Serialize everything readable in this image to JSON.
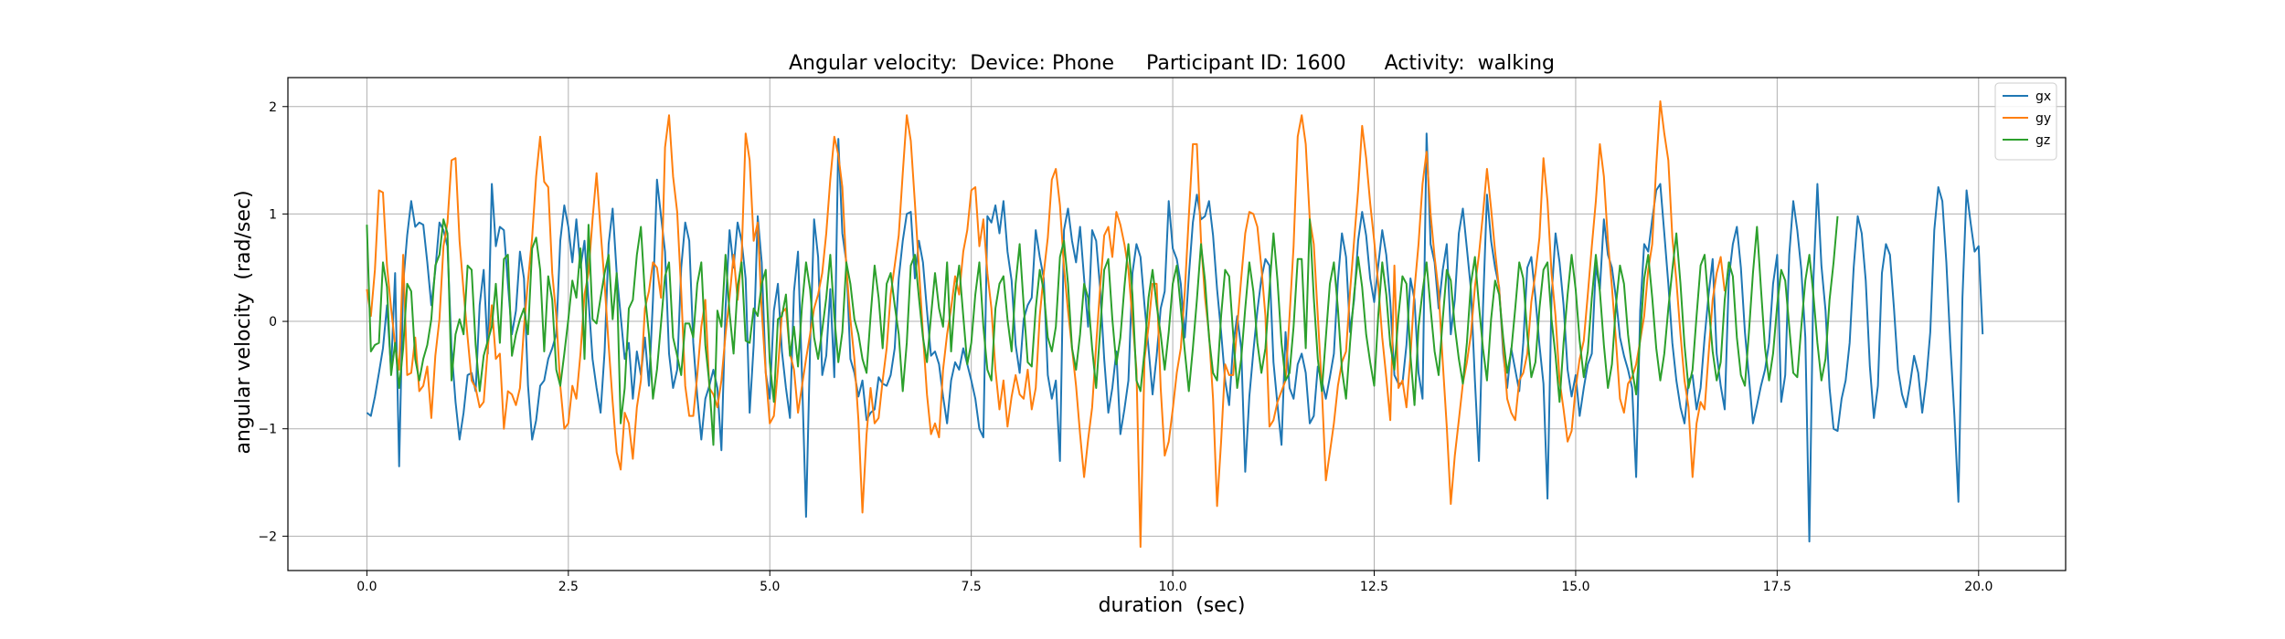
{
  "chart_data": {
    "type": "line",
    "title": "Angular velocity:  Device: Phone     Participant ID: 1600      Activity:  walking",
    "xlabel": "duration  (sec)",
    "ylabel": "angular velocity  (rad/sec)",
    "xlim": [
      -0.98,
      21.08
    ],
    "ylim": [
      -2.32,
      2.27
    ],
    "xticks": [
      0.0,
      2.5,
      5.0,
      7.5,
      10.0,
      12.5,
      15.0,
      17.5,
      20.0
    ],
    "xtick_labels": [
      "0.0",
      "2.5",
      "5.0",
      "7.5",
      "10.0",
      "12.5",
      "15.0",
      "17.5",
      "20.0"
    ],
    "yticks": [
      -2,
      -1,
      0,
      1,
      2
    ],
    "ytick_labels": [
      "−2",
      "−1",
      "0",
      "1",
      "2"
    ],
    "grid": true,
    "legend_position": "top-right",
    "sample_interval": 0.05,
    "x_start": 0.0,
    "series": [
      {
        "name": "gx",
        "color": "#1f77b4",
        "values": [
          -0.85,
          -0.88,
          -0.7,
          -0.48,
          -0.25,
          0.15,
          -0.45,
          0.45,
          -1.35,
          0.35,
          0.8,
          1.12,
          0.88,
          0.92,
          0.9,
          0.55,
          0.15,
          0.48,
          0.92,
          0.85,
          0.7,
          -0.25,
          -0.75,
          -1.1,
          -0.85,
          -0.5,
          -0.48,
          -0.65,
          0.15,
          0.48,
          -0.3,
          1.28,
          0.7,
          0.88,
          0.85,
          0.35,
          -0.12,
          0.1,
          0.65,
          0.4,
          -0.6,
          -1.1,
          -0.92,
          -0.6,
          -0.55,
          -0.35,
          -0.25,
          -0.12,
          0.75,
          1.08,
          0.88,
          0.55,
          0.95,
          0.5,
          0.75,
          0.2,
          -0.35,
          -0.62,
          -0.85,
          -0.28,
          0.72,
          1.05,
          0.45,
          0.05,
          -0.35,
          -0.2,
          -0.72,
          -0.28,
          -0.5,
          -0.15,
          -0.6,
          0.2,
          1.32,
          0.98,
          0.65,
          -0.3,
          -0.62,
          -0.45,
          0.5,
          0.92,
          0.75,
          -0.2,
          -0.7,
          -1.1,
          -0.72,
          -0.6,
          -0.45,
          -0.62,
          -1.2,
          0.12,
          0.85,
          0.5,
          0.92,
          0.75,
          0.4,
          -0.85,
          -0.22,
          0.98,
          0.55,
          -0.48,
          -0.72,
          0.1,
          0.35,
          -0.28,
          -0.62,
          -0.9,
          0.28,
          0.65,
          -0.52,
          -1.82,
          -0.25,
          0.95,
          0.6,
          -0.5,
          -0.32,
          0.3,
          -0.52,
          1.7,
          0.82,
          0.55,
          -0.35,
          -0.48,
          -0.7,
          -0.55,
          -0.92,
          -0.85,
          -0.82,
          -0.52,
          -0.58,
          -0.6,
          -0.5,
          -0.25,
          0.4,
          0.75,
          1.0,
          1.02,
          0.4,
          0.75,
          0.55,
          0.1,
          -0.32,
          -0.28,
          -0.4,
          -0.7,
          -0.95,
          -0.55,
          -0.38,
          -0.45,
          -0.25,
          -0.4,
          -0.55,
          -0.72,
          -1.0,
          -1.08,
          0.98,
          0.92,
          1.08,
          0.82,
          1.12,
          0.65,
          0.38,
          -0.22,
          -0.48,
          0.02,
          0.15,
          0.22,
          0.85,
          0.6,
          0.4,
          -0.5,
          -0.72,
          -0.55,
          -1.3,
          0.85,
          1.05,
          0.75,
          0.55,
          0.88,
          0.4,
          -0.05,
          0.85,
          0.75,
          0.3,
          -0.35,
          -0.85,
          -0.62,
          -0.28,
          -1.05,
          -0.82,
          -0.55,
          0.45,
          0.72,
          0.6,
          0.15,
          -0.25,
          -0.68,
          -0.32,
          0.12,
          0.28,
          1.12,
          0.68,
          0.58,
          0.35,
          -0.15,
          0.42,
          0.92,
          1.18,
          0.95,
          0.98,
          1.12,
          0.8,
          0.3,
          -0.1,
          -0.55,
          -0.78,
          -0.22,
          0.05,
          -0.25,
          -1.4,
          -0.7,
          -0.28,
          0.1,
          0.4,
          0.58,
          0.52,
          -0.38,
          -0.78,
          -1.15,
          -0.1,
          -0.62,
          -0.72,
          -0.4,
          -0.3,
          -0.48,
          -0.95,
          -0.88,
          -0.42,
          -0.55,
          -0.72,
          -0.52,
          -0.3,
          0.38,
          0.82,
          0.6,
          -0.1,
          0.2,
          0.75,
          1.02,
          0.8,
          0.4,
          0.18,
          0.52,
          0.85,
          0.62,
          0.18,
          -0.5,
          -0.58,
          -0.58,
          -0.22,
          0.4,
          0.2,
          -0.48,
          -0.72,
          1.75,
          0.72,
          0.55,
          0.12,
          0.48,
          0.72,
          -0.12,
          0.2,
          0.82,
          1.05,
          0.68,
          0.3,
          -0.55,
          -1.3,
          0.12,
          1.18,
          0.75,
          0.5,
          0.32,
          -0.3,
          -0.62,
          -0.25,
          -0.45,
          -0.65,
          -0.2,
          0.5,
          0.6,
          0.22,
          -0.22,
          -0.58,
          -1.65,
          0.22,
          0.82,
          0.55,
          0.15,
          -0.45,
          -0.7,
          -0.5,
          -0.88,
          -0.62,
          -0.4,
          -0.3,
          0.52,
          0.3,
          0.95,
          0.62,
          0.5,
          0.22,
          -0.15,
          -0.32,
          -0.45,
          -0.62,
          -1.45,
          0.1,
          0.72,
          0.65,
          0.95,
          1.22,
          1.28,
          0.82,
          0.35,
          -0.2,
          -0.55,
          -0.8,
          -0.95,
          -0.55,
          -0.5,
          -0.82,
          -0.62,
          -0.15,
          0.25,
          0.58,
          -0.3,
          -0.6,
          -0.82,
          0.4,
          0.72,
          0.88,
          0.5,
          -0.1,
          -0.52,
          -0.95,
          -0.78,
          -0.6,
          -0.45,
          -0.2,
          0.35,
          0.62,
          -0.75,
          -0.5,
          0.62,
          1.12,
          0.85,
          0.48,
          -0.15,
          -2.05,
          0.38,
          1.28,
          0.52,
          0.1,
          -0.62,
          -1.0,
          -1.02,
          -0.72,
          -0.55,
          -0.2,
          0.5,
          0.98,
          0.82,
          0.38,
          -0.42,
          -0.9,
          -0.6,
          0.45,
          0.72,
          0.62,
          0.12,
          -0.45,
          -0.68,
          -0.8,
          -0.58,
          -0.32,
          -0.48,
          -0.85,
          -0.55,
          -0.1,
          0.85,
          1.25,
          1.12,
          0.55,
          -0.22,
          -0.88,
          -1.68,
          0.22,
          1.22,
          0.92,
          0.65,
          0.7,
          -0.12
        ]
      },
      {
        "name": "gy",
        "color": "#ff7f0e",
        "values": [
          0.3,
          0.05,
          0.48,
          1.22,
          1.2,
          0.52,
          0.12,
          -0.22,
          -0.45,
          0.62,
          -0.5,
          -0.48,
          -0.15,
          -0.65,
          -0.6,
          -0.42,
          -0.9,
          -0.32,
          0.02,
          0.7,
          0.92,
          1.5,
          1.52,
          0.75,
          0.28,
          -0.15,
          -0.55,
          -0.62,
          -0.8,
          -0.75,
          -0.25,
          0.15,
          -0.35,
          -0.3,
          -1.0,
          -0.65,
          -0.68,
          -0.78,
          -0.62,
          -0.05,
          0.38,
          0.78,
          1.35,
          1.72,
          1.3,
          1.25,
          0.45,
          0.05,
          -0.6,
          -1.0,
          -0.95,
          -0.6,
          -0.72,
          -0.3,
          0.25,
          0.45,
          0.95,
          1.38,
          0.85,
          0.35,
          -0.22,
          -0.75,
          -1.22,
          -1.38,
          -0.85,
          -0.95,
          -1.28,
          -0.8,
          -0.55,
          0.12,
          0.28,
          0.55,
          0.5,
          0.22,
          1.62,
          1.92,
          1.35,
          1.02,
          0.28,
          -0.6,
          -0.88,
          -0.88,
          -0.5,
          -0.05,
          0.2,
          -0.62,
          -0.68,
          -0.8,
          -0.55,
          -0.12,
          0.22,
          0.62,
          0.2,
          0.6,
          1.75,
          1.5,
          0.75,
          0.92,
          0.1,
          -0.48,
          -0.95,
          -0.88,
          -0.45,
          0.08,
          0.12,
          -0.3,
          -0.45,
          -0.85,
          -0.6,
          -0.35,
          -0.12,
          0.12,
          0.25,
          0.45,
          0.82,
          1.32,
          1.72,
          1.55,
          1.25,
          0.5,
          0.02,
          -0.35,
          -0.92,
          -1.78,
          -1.05,
          -0.62,
          -0.95,
          -0.9,
          -0.55,
          -0.25,
          0.25,
          0.52,
          0.8,
          1.38,
          1.92,
          1.68,
          1.1,
          0.5,
          -0.12,
          -0.68,
          -1.05,
          -0.95,
          -1.08,
          -0.45,
          -0.12,
          0.12,
          0.42,
          0.25,
          0.65,
          0.85,
          1.22,
          1.25,
          0.7,
          0.95,
          0.45,
          0.12,
          -0.45,
          -0.82,
          -0.55,
          -0.98,
          -0.7,
          -0.5,
          -0.68,
          -0.72,
          -0.45,
          -0.82,
          -0.62,
          0.05,
          0.45,
          0.78,
          1.32,
          1.42,
          1.08,
          0.5,
          0.1,
          -0.25,
          -0.6,
          -1.05,
          -1.45,
          -1.1,
          -0.8,
          -0.22,
          0.32,
          0.8,
          0.88,
          0.6,
          1.02,
          0.9,
          0.72,
          0.48,
          0.02,
          -0.45,
          -2.1,
          -0.35,
          -0.05,
          0.35,
          0.35,
          -0.62,
          -1.25,
          -1.12,
          -0.82,
          -0.48,
          -0.25,
          0.28,
          0.98,
          1.65,
          1.65,
          0.75,
          0.22,
          -0.12,
          -0.72,
          -1.72,
          -1.12,
          -0.4,
          -0.5,
          -0.5,
          -0.05,
          0.4,
          0.82,
          1.02,
          1.0,
          0.88,
          0.5,
          0.05,
          -0.98,
          -0.92,
          -0.75,
          -0.65,
          -0.55,
          0.05,
          0.7,
          1.72,
          1.92,
          1.65,
          0.95,
          0.72,
          0.05,
          -0.62,
          -1.48,
          -1.22,
          -0.95,
          -0.6,
          -0.38,
          -0.28,
          0.28,
          0.75,
          1.22,
          1.82,
          1.52,
          1.1,
          0.75,
          0.35,
          -0.15,
          -0.52,
          -0.92,
          0.52,
          -0.62,
          -0.55,
          -0.8,
          -0.32,
          0.3,
          0.72,
          1.28,
          1.58,
          1.0,
          0.6,
          0.28,
          -0.38,
          -0.98,
          -1.7,
          -1.25,
          -0.92,
          -0.58,
          -0.38,
          -0.12,
          0.32,
          0.62,
          1.0,
          1.42,
          1.05,
          0.65,
          0.3,
          -0.22,
          -0.72,
          -0.85,
          -0.92,
          -0.55,
          -0.48,
          -0.3,
          0.18,
          0.45,
          0.78,
          1.52,
          1.12,
          0.45,
          0.05,
          -0.55,
          -0.82,
          -1.12,
          -1.02,
          -0.62,
          -0.35,
          -0.18,
          0.25,
          0.7,
          1.12,
          1.65,
          1.35,
          0.75,
          0.32,
          -0.18,
          -0.72,
          -0.85,
          -0.58,
          -0.52,
          -0.4,
          -0.18,
          0.05,
          0.48,
          0.72,
          1.45,
          2.05,
          1.75,
          1.5,
          0.78,
          0.38,
          -0.12,
          -0.55,
          -0.8,
          -1.45,
          -0.95,
          -0.75,
          -0.82,
          -0.3,
          0.2,
          0.45,
          0.6,
          0.28
        ]
      },
      {
        "name": "gz",
        "color": "#2ca02c",
        "values": [
          0.9,
          -0.28,
          -0.22,
          -0.2,
          0.55,
          0.32,
          -0.5,
          -0.2,
          -0.62,
          -0.25,
          0.35,
          0.28,
          -0.35,
          -0.55,
          -0.35,
          -0.22,
          0.02,
          0.52,
          0.62,
          0.95,
          0.82,
          -0.55,
          -0.12,
          0.02,
          -0.12,
          0.52,
          0.48,
          -0.22,
          -0.65,
          -0.32,
          -0.18,
          -0.05,
          0.35,
          -0.2,
          0.58,
          0.62,
          -0.32,
          -0.12,
          0.02,
          0.12,
          -0.12,
          0.68,
          0.78,
          0.48,
          -0.28,
          0.42,
          0.2,
          -0.45,
          -0.6,
          -0.3,
          0.02,
          0.38,
          0.22,
          0.68,
          -0.35,
          0.9,
          0.02,
          -0.02,
          0.22,
          0.45,
          0.62,
          0.02,
          0.45,
          -0.95,
          -0.62,
          0.12,
          0.2,
          0.62,
          0.88,
          0.25,
          -0.12,
          -0.72,
          -0.45,
          -0.02,
          0.42,
          0.55,
          -0.15,
          -0.32,
          -0.5,
          -0.02,
          -0.02,
          -0.15,
          0.35,
          0.55,
          -0.22,
          -0.58,
          -1.15,
          0.1,
          -0.05,
          0.62,
          0.08,
          -0.3,
          0.32,
          0.55,
          -0.18,
          -0.2,
          0.12,
          0.05,
          0.35,
          0.48,
          -0.38,
          -0.75,
          0.02,
          0.05,
          0.25,
          -0.32,
          -0.05,
          -0.42,
          0.15,
          0.55,
          0.3,
          -0.15,
          -0.35,
          -0.08,
          0.22,
          0.62,
          0.05,
          -0.38,
          -0.1,
          0.55,
          0.35,
          0.02,
          -0.12,
          -0.35,
          -0.48,
          0.05,
          0.52,
          0.22,
          -0.25,
          0.35,
          0.45,
          0.15,
          -0.12,
          -0.65,
          -0.2,
          0.52,
          0.62,
          0.22,
          -0.15,
          -0.38,
          0.05,
          0.45,
          0.12,
          -0.05,
          0.55,
          -0.28,
          0.25,
          0.52,
          0.05,
          -0.4,
          -0.2,
          0.25,
          0.55,
          -0.05,
          -0.45,
          -0.55,
          0.12,
          0.35,
          0.42,
          0.02,
          -0.28,
          0.35,
          0.72,
          0.15,
          -0.38,
          -0.42,
          0.12,
          0.48,
          0.28,
          -0.15,
          -0.28,
          -0.05,
          0.6,
          0.75,
          0.35,
          -0.25,
          -0.45,
          -0.12,
          0.35,
          0.22,
          -0.25,
          -0.62,
          -0.08,
          0.48,
          0.58,
          0.02,
          -0.4,
          -0.15,
          0.32,
          0.72,
          0.25,
          -0.55,
          -0.65,
          -0.28,
          0.22,
          0.48,
          0.15,
          -0.12,
          -0.45,
          -0.1,
          0.35,
          0.52,
          0.12,
          -0.28,
          -0.65,
          -0.25,
          0.2,
          0.72,
          0.38,
          -0.15,
          -0.48,
          -0.55,
          0.05,
          0.48,
          0.42,
          -0.12,
          -0.62,
          -0.35,
          0.12,
          0.55,
          0.28,
          -0.2,
          -0.48,
          -0.25,
          0.3,
          0.82,
          0.38,
          -0.2,
          -0.55,
          -0.48,
          -0.05,
          0.58,
          0.58,
          -0.25,
          0.95,
          0.22,
          -0.35,
          -0.65,
          -0.15,
          0.35,
          0.55,
          0.12,
          -0.45,
          -0.72,
          -0.2,
          0.25,
          0.6,
          0.32,
          -0.12,
          -0.38,
          -0.6,
          0.05,
          0.55,
          0.25,
          -0.22,
          -0.45,
          0.05,
          0.42,
          0.35,
          -0.32,
          -0.78,
          -0.05,
          0.28,
          0.55,
          0.12,
          -0.28,
          -0.5,
          0.02,
          0.48,
          0.38,
          -0.05,
          -0.35,
          -0.58,
          -0.2,
          0.35,
          0.6,
          0.15,
          -0.25,
          -0.55,
          0.02,
          0.38,
          0.25,
          -0.15,
          -0.48,
          -0.28,
          0.12,
          0.55,
          0.4,
          -0.12,
          -0.52,
          -0.38,
          0.12,
          0.48,
          0.55,
          0.02,
          -0.32,
          -0.75,
          -0.2,
          0.25,
          0.62,
          0.3,
          -0.18,
          -0.52,
          -0.28,
          0.22,
          0.62,
          0.28,
          -0.22,
          -0.62,
          -0.4,
          0.15,
          0.52,
          0.35,
          -0.12,
          -0.45,
          -0.68,
          -0.15,
          0.4,
          0.62,
          0.22,
          -0.25,
          -0.55,
          -0.3,
          0.12,
          0.48,
          0.82,
          0.35,
          -0.22,
          -0.62,
          -0.45,
          0.05,
          0.52,
          0.62,
          0.15,
          -0.28,
          -0.55,
          -0.38,
          0.2,
          0.55,
          0.42,
          -0.15,
          -0.5,
          -0.6,
          -0.1,
          0.45,
          0.88,
          0.3,
          -0.25,
          -0.55,
          -0.3,
          0.15,
          0.48,
          0.38,
          -0.05,
          -0.48,
          -0.52,
          -0.05,
          0.38,
          0.62,
          0.25,
          -0.2,
          -0.55,
          -0.35,
          0.2,
          0.55,
          0.98
        ]
      }
    ]
  }
}
